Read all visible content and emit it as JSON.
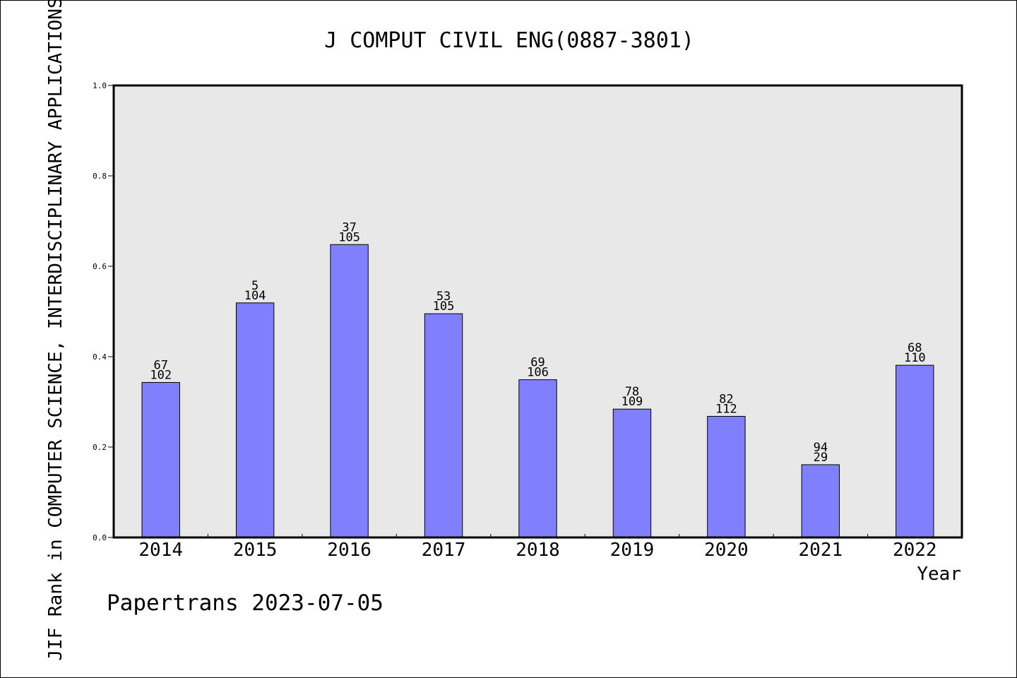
{
  "chart_data": {
    "type": "bar",
    "title": "J COMPUT CIVIL ENG(0887-3801)",
    "xlabel": "Year",
    "ylabel": "JIF Rank in COMPUTER SCIENCE, INTERDISCIPLINARY APPLICATIONS",
    "categories": [
      "2014",
      "2015",
      "2016",
      "2017",
      "2018",
      "2019",
      "2020",
      "2021",
      "2022"
    ],
    "values": [
      0.343,
      0.519,
      0.648,
      0.495,
      0.349,
      0.284,
      0.268,
      0.161,
      0.381
    ],
    "labels_top": [
      "67",
      "5",
      "37",
      "53",
      "69",
      "78",
      "82",
      "94",
      "68"
    ],
    "labels_bottom": [
      "102",
      "104",
      "105",
      "105",
      "106",
      "109",
      "112",
      "29",
      "110"
    ],
    "ylim": [
      0,
      1.0
    ],
    "yticks": [
      "0.0",
      "0.2",
      "0.4",
      "0.6",
      "0.8",
      "1.0"
    ],
    "grid": false,
    "colors": {
      "bar": "#8080ff",
      "plot_bg": "#e8e8e8",
      "axis": "#000000"
    }
  },
  "footer": {
    "watermark": "Papertrans 2023-07-05"
  }
}
